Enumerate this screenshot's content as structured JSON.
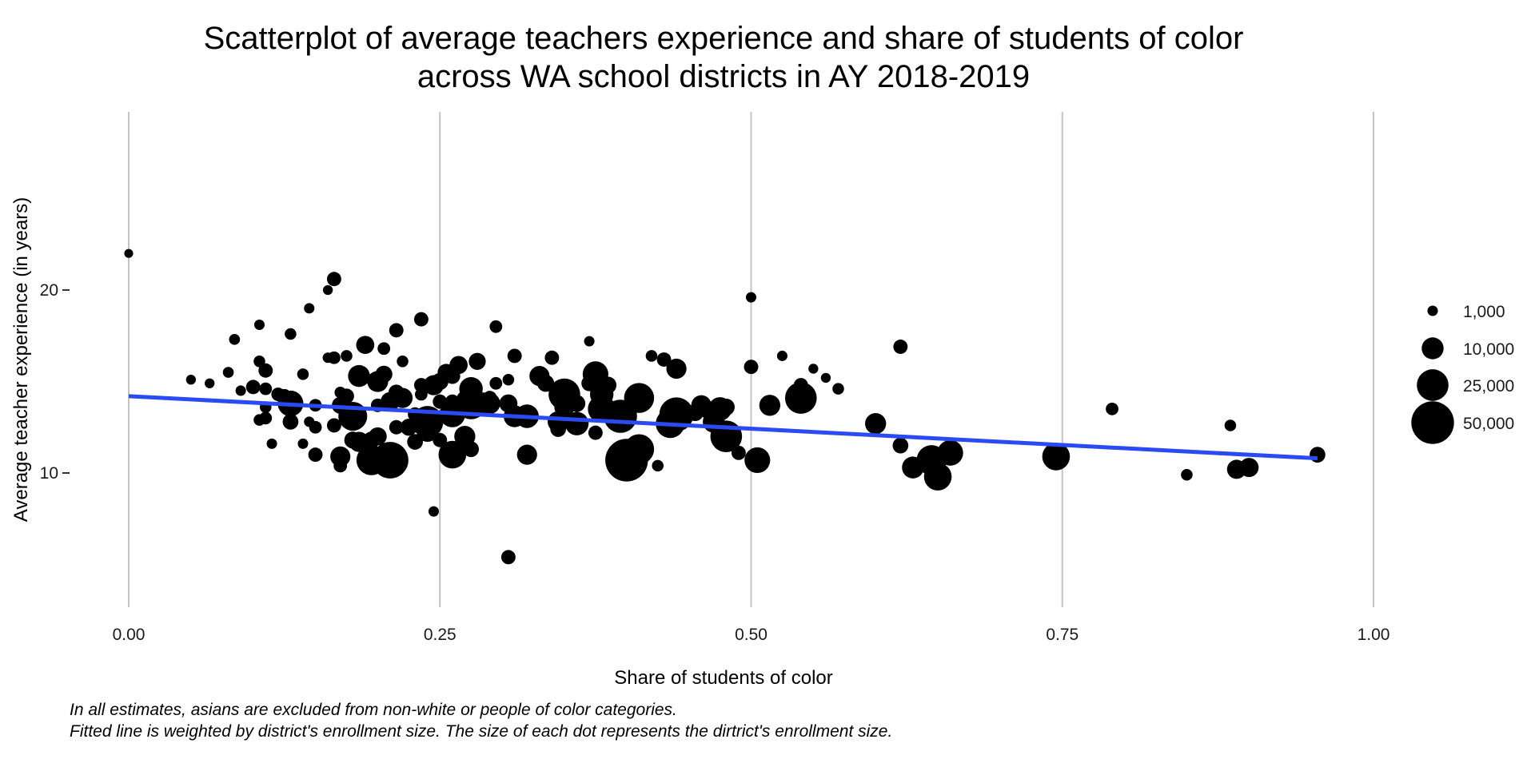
{
  "chart_data": {
    "type": "scatter",
    "title_lines": [
      "Scatterplot of average teachers experience and share of students of color",
      "across WA school districts in AY 2018-2019"
    ],
    "xlabel": "Share of students of color",
    "ylabel": "Average teacher experience (in years)",
    "x_ticks": [
      "0.00",
      "0.25",
      "0.50",
      "0.75",
      "1.00"
    ],
    "x_tick_values": [
      0,
      0.25,
      0.5,
      0.75,
      1.0
    ],
    "y_ticks": [
      "10",
      "20"
    ],
    "y_tick_values": [
      10,
      20
    ],
    "xlim": [
      -0.05,
      1.05
    ],
    "ylim": [
      2.5,
      27.5
    ],
    "grid": "vertical major lines",
    "legend": {
      "placement": "right",
      "entries": [
        {
          "label": "1,000",
          "size": 1000
        },
        {
          "label": "10,000",
          "size": 10000
        },
        {
          "label": "25,000",
          "size": 25000
        },
        {
          "label": "50,000",
          "size": 50000
        }
      ]
    },
    "fit_line": {
      "color": "#2a4bf2",
      "x": [
        0,
        0.955
      ],
      "y": [
        14.2,
        10.8
      ]
    },
    "point_color": "#000000",
    "points": [
      [
        0.0,
        22.0,
        500
      ],
      [
        0.05,
        15.1,
        800
      ],
      [
        0.065,
        14.9,
        800
      ],
      [
        0.08,
        15.5,
        1200
      ],
      [
        0.085,
        17.3,
        1200
      ],
      [
        0.09,
        14.5,
        1000
      ],
      [
        0.1,
        14.7,
        3000
      ],
      [
        0.105,
        18.1,
        1000
      ],
      [
        0.105,
        16.1,
        1500
      ],
      [
        0.11,
        15.6,
        3000
      ],
      [
        0.11,
        14.6,
        2000
      ],
      [
        0.105,
        12.9,
        1500
      ],
      [
        0.11,
        13.0,
        2000
      ],
      [
        0.11,
        13.6,
        1500
      ],
      [
        0.115,
        11.6,
        1000
      ],
      [
        0.12,
        14.3,
        2500
      ],
      [
        0.125,
        14.2,
        3000
      ],
      [
        0.13,
        12.8,
        4000
      ],
      [
        0.13,
        17.6,
        1500
      ],
      [
        0.13,
        13.8,
        15000
      ],
      [
        0.14,
        15.4,
        1500
      ],
      [
        0.14,
        11.6,
        1000
      ],
      [
        0.145,
        12.8,
        1000
      ],
      [
        0.145,
        19.0,
        1000
      ],
      [
        0.15,
        13.7,
        2000
      ],
      [
        0.15,
        12.5,
        2000
      ],
      [
        0.15,
        11.0,
        3000
      ],
      [
        0.16,
        20.0,
        800
      ],
      [
        0.16,
        16.3,
        1000
      ],
      [
        0.165,
        20.6,
        3000
      ],
      [
        0.165,
        16.3,
        2000
      ],
      [
        0.165,
        12.6,
        3000
      ],
      [
        0.17,
        13.7,
        5000
      ],
      [
        0.17,
        14.4,
        1500
      ],
      [
        0.17,
        10.9,
        8000
      ],
      [
        0.17,
        10.4,
        2500
      ],
      [
        0.175,
        16.4,
        1500
      ],
      [
        0.175,
        14.2,
        3500
      ],
      [
        0.18,
        13.1,
        20000
      ],
      [
        0.18,
        11.8,
        5000
      ],
      [
        0.18,
        13.4,
        3000
      ],
      [
        0.185,
        15.3,
        10000
      ],
      [
        0.185,
        11.7,
        8000
      ],
      [
        0.19,
        17.0,
        6000
      ],
      [
        0.195,
        11.8,
        5000
      ],
      [
        0.195,
        10.4,
        3000
      ],
      [
        0.195,
        10.7,
        22000
      ],
      [
        0.2,
        15.0,
        9000
      ],
      [
        0.2,
        12.0,
        6000
      ],
      [
        0.2,
        13.7,
        2500
      ],
      [
        0.205,
        15.4,
        5000
      ],
      [
        0.205,
        16.8,
        2000
      ],
      [
        0.21,
        13.9,
        7000
      ],
      [
        0.21,
        10.7,
        35000
      ],
      [
        0.215,
        14.4,
        4000
      ],
      [
        0.215,
        12.5,
        3000
      ],
      [
        0.215,
        17.8,
        3000
      ],
      [
        0.22,
        16.1,
        1500
      ],
      [
        0.22,
        14.1,
        8000
      ],
      [
        0.225,
        12.5,
        5000
      ],
      [
        0.23,
        13.2,
        3000
      ],
      [
        0.23,
        11.7,
        4000
      ],
      [
        0.235,
        18.4,
        3000
      ],
      [
        0.235,
        14.8,
        3000
      ],
      [
        0.235,
        14.3,
        2000
      ],
      [
        0.24,
        12.8,
        25000
      ],
      [
        0.24,
        12.3,
        10000
      ],
      [
        0.245,
        14.8,
        8000
      ],
      [
        0.245,
        7.9,
        1000
      ],
      [
        0.25,
        13.9,
        3000
      ],
      [
        0.25,
        15.0,
        5000
      ],
      [
        0.25,
        11.8,
        3000
      ],
      [
        0.255,
        15.5,
        5000
      ],
      [
        0.26,
        15.3,
        4000
      ],
      [
        0.26,
        13.9,
        3000
      ],
      [
        0.26,
        11.0,
        18000
      ],
      [
        0.26,
        13.2,
        15000
      ],
      [
        0.265,
        15.9,
        6000
      ],
      [
        0.27,
        12.0,
        9000
      ],
      [
        0.275,
        14.6,
        12000
      ],
      [
        0.275,
        13.8,
        25000
      ],
      [
        0.275,
        11.3,
        4000
      ],
      [
        0.28,
        16.1,
        5000
      ],
      [
        0.285,
        13.8,
        10000
      ],
      [
        0.29,
        14.1,
        3000
      ],
      [
        0.29,
        13.8,
        9000
      ],
      [
        0.295,
        14.9,
        2000
      ],
      [
        0.295,
        18.0,
        2000
      ],
      [
        0.305,
        13.8,
        6000
      ],
      [
        0.305,
        15.1,
        1500
      ],
      [
        0.305,
        5.4,
        3000
      ],
      [
        0.31,
        13.1,
        10000
      ],
      [
        0.31,
        16.4,
        3000
      ],
      [
        0.32,
        11.0,
        8000
      ],
      [
        0.32,
        13.1,
        12000
      ],
      [
        0.33,
        15.3,
        8000
      ],
      [
        0.335,
        14.9,
        5000
      ],
      [
        0.34,
        16.3,
        3000
      ],
      [
        0.345,
        12.8,
        9000
      ],
      [
        0.345,
        12.4,
        4000
      ],
      [
        0.35,
        14.3,
        25000
      ],
      [
        0.35,
        13.6,
        8000
      ],
      [
        0.355,
        12.9,
        3000
      ],
      [
        0.36,
        12.7,
        12000
      ],
      [
        0.36,
        13.8,
        5000
      ],
      [
        0.37,
        17.2,
        1000
      ],
      [
        0.37,
        14.9,
        4000
      ],
      [
        0.375,
        12.2,
        3000
      ],
      [
        0.375,
        15.4,
        15000
      ],
      [
        0.38,
        14.3,
        12000
      ],
      [
        0.38,
        13.5,
        18000
      ],
      [
        0.385,
        14.8,
        5000
      ],
      [
        0.395,
        13.1,
        28000
      ],
      [
        0.4,
        10.7,
        50000
      ],
      [
        0.41,
        14.1,
        22000
      ],
      [
        0.41,
        11.3,
        22000
      ],
      [
        0.42,
        16.4,
        1500
      ],
      [
        0.425,
        10.4,
        1500
      ],
      [
        0.43,
        16.2,
        3000
      ],
      [
        0.435,
        12.7,
        20000
      ],
      [
        0.435,
        13.1,
        8000
      ],
      [
        0.44,
        15.7,
        8000
      ],
      [
        0.44,
        13.2,
        30000
      ],
      [
        0.455,
        13.3,
        5000
      ],
      [
        0.46,
        13.7,
        8000
      ],
      [
        0.465,
        13.4,
        4000
      ],
      [
        0.47,
        12.8,
        10000
      ],
      [
        0.475,
        13.5,
        12000
      ],
      [
        0.48,
        13.6,
        5000
      ],
      [
        0.48,
        12.0,
        25000
      ],
      [
        0.49,
        11.1,
        3000
      ],
      [
        0.5,
        15.8,
        3000
      ],
      [
        0.5,
        19.6,
        1000
      ],
      [
        0.505,
        10.7,
        15000
      ],
      [
        0.515,
        13.7,
        9000
      ],
      [
        0.525,
        16.4,
        1000
      ],
      [
        0.54,
        14.8,
        3000
      ],
      [
        0.54,
        14.1,
        25000
      ],
      [
        0.55,
        15.7,
        800
      ],
      [
        0.56,
        15.2,
        800
      ],
      [
        0.57,
        14.6,
        1500
      ],
      [
        0.6,
        12.7,
        9000
      ],
      [
        0.62,
        16.9,
        3000
      ],
      [
        0.62,
        11.5,
        4000
      ],
      [
        0.63,
        10.3,
        10000
      ],
      [
        0.645,
        10.7,
        22000
      ],
      [
        0.65,
        9.8,
        18000
      ],
      [
        0.66,
        11.1,
        15000
      ],
      [
        0.74,
        11.0,
        3000
      ],
      [
        0.745,
        10.9,
        18000
      ],
      [
        0.79,
        13.5,
        2000
      ],
      [
        0.85,
        9.9,
        1500
      ],
      [
        0.885,
        12.6,
        1500
      ],
      [
        0.89,
        10.2,
        7000
      ],
      [
        0.9,
        10.3,
        7000
      ],
      [
        0.955,
        11.0,
        4000
      ]
    ],
    "caption_lines": [
      "In all estimates, asians are excluded from non-white or people of color categories.",
      "Fitted line is weighted by district's enrollment size. The size of each dot represents the dirtrict's enrollment size."
    ]
  }
}
